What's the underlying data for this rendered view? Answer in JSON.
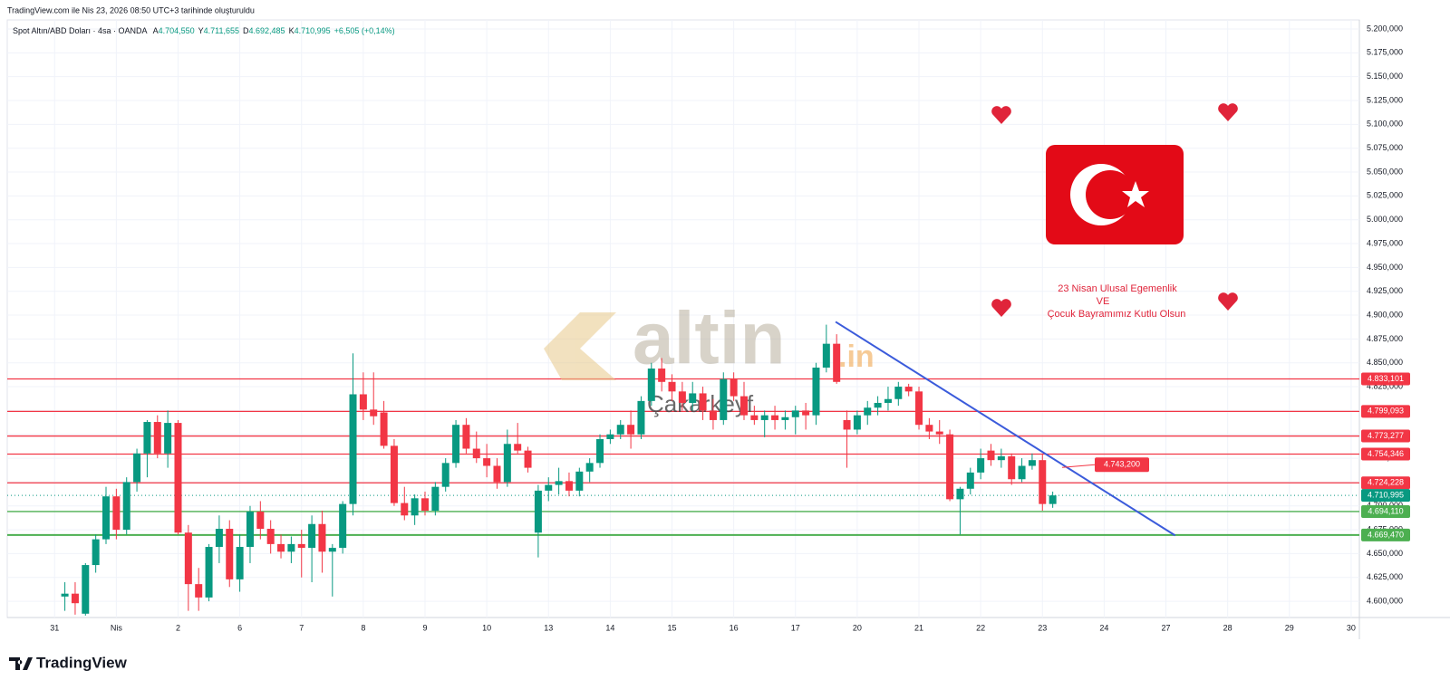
{
  "chart_data": {
    "type": "candlestick",
    "created": "TradingView.com ile Nis 23, 2026 08:50 UTC+3 tarihinde oluşturuldu",
    "symbol": "Spot Altın/ABD Doları · 4sa · OANDA",
    "ohlc": [
      {
        "key": "A",
        "value": "4.704,550"
      },
      {
        "key": "Y",
        "value": "4.711,655"
      },
      {
        "key": "D",
        "value": "4.692,485"
      },
      {
        "key": "K",
        "value": "4.710,995"
      }
    ],
    "change": "+6,505 (+0,14%)",
    "greeting": [
      "23 Nisan Ulusal Egemenlik",
      "VE",
      "Çocuk Bayramımız Kutlu Olsun"
    ],
    "watermark": {
      "brand": "altin",
      "suffix": ".in",
      "author": "Çakarkeyf"
    },
    "logo": "TradingView",
    "up_color": "#089981",
    "down_color": "#f23645",
    "x": [
      0,
      1,
      2,
      3,
      4,
      5,
      6,
      7,
      8,
      9,
      10,
      11,
      12,
      13,
      14,
      15,
      16,
      17,
      18,
      19,
      20,
      21,
      22,
      23,
      24,
      25,
      26,
      27,
      28,
      29,
      30,
      31,
      32,
      33,
      34,
      35,
      36,
      37,
      38,
      39,
      40,
      41,
      42,
      43,
      44,
      45,
      46,
      47,
      48,
      49,
      50,
      51,
      52,
      53,
      54,
      55,
      56,
      57,
      58,
      59,
      60,
      61,
      62,
      63,
      64,
      65,
      66,
      67,
      68,
      69,
      70,
      71,
      72,
      73,
      74,
      75,
      76,
      77,
      78,
      79,
      80,
      81,
      82,
      83,
      84,
      85,
      86,
      87,
      88,
      89,
      90,
      91,
      92,
      93,
      94,
      95,
      96
    ],
    "open": [
      4605,
      4608,
      4587,
      4638,
      4665,
      4710,
      4675,
      4725,
      4755,
      4788,
      4755,
      4787,
      4672,
      4618,
      4604,
      4657,
      4676,
      4623,
      4657,
      4694,
      4676,
      4660,
      4652,
      4660,
      4656,
      4681,
      4652,
      4656,
      4702,
      4817,
      4801,
      4798,
      4763,
      4703,
      4690,
      4708,
      4695,
      4720,
      4745,
      4785,
      4760,
      4750,
      4742,
      4725,
      4765,
      4758,
      4672,
      4716,
      4722,
      4726,
      4716,
      4736,
      4745,
      4770,
      4775,
      4785,
      4775,
      4810,
      4844,
      4830,
      4820,
      4808,
      4818,
      4800,
      4790,
      4833,
      4815,
      4795,
      4790,
      4795,
      4790,
      4793,
      4800,
      4795,
      4845,
      4870,
      4790,
      4780,
      4795,
      4803,
      4808,
      4812,
      4825,
      4820,
      4785,
      4778,
      4775,
      4707,
      4718,
      4735,
      4758,
      4748,
      4752,
      4728,
      4742,
      4748,
      4702
    ],
    "high": [
      4620,
      4620,
      4640,
      4670,
      4720,
      4718,
      4730,
      4760,
      4790,
      4795,
      4800,
      4790,
      4680,
      4635,
      4660,
      4690,
      4685,
      4670,
      4700,
      4705,
      4685,
      4670,
      4668,
      4675,
      4690,
      4695,
      4660,
      4705,
      4860,
      4840,
      4840,
      4810,
      4770,
      4720,
      4712,
      4715,
      4725,
      4750,
      4790,
      4792,
      4778,
      4765,
      4750,
      4780,
      4787,
      4762,
      4722,
      4730,
      4740,
      4735,
      4740,
      4750,
      4775,
      4780,
      4790,
      4800,
      4815,
      4850,
      4855,
      4838,
      4830,
      4830,
      4825,
      4812,
      4840,
      4840,
      4830,
      4805,
      4800,
      4805,
      4800,
      4805,
      4808,
      4850,
      4890,
      4880,
      4800,
      4800,
      4810,
      4815,
      4825,
      4830,
      4828,
      4825,
      4792,
      4790,
      4780,
      4720,
      4740,
      4760,
      4765,
      4760,
      4755,
      4750,
      4755,
      4754,
      4715
    ],
    "low": [
      4590,
      4586,
      4585,
      4630,
      4660,
      4665,
      4670,
      4715,
      4730,
      4750,
      4740,
      4670,
      4590,
      4590,
      4600,
      4640,
      4615,
      4610,
      4640,
      4665,
      4650,
      4645,
      4640,
      4625,
      4620,
      4630,
      4605,
      4650,
      4690,
      4790,
      4785,
      4760,
      4700,
      4685,
      4680,
      4690,
      4690,
      4715,
      4740,
      4755,
      4745,
      4730,
      4718,
      4720,
      4755,
      4735,
      4646,
      4705,
      4712,
      4710,
      4710,
      4725,
      4740,
      4765,
      4770,
      4760,
      4770,
      4805,
      4820,
      4810,
      4800,
      4800,
      4790,
      4780,
      4785,
      4810,
      4790,
      4785,
      4772,
      4780,
      4780,
      4775,
      4780,
      4785,
      4840,
      4828,
      4740,
      4775,
      4785,
      4795,
      4800,
      4805,
      4815,
      4780,
      4770,
      4765,
      4705,
      4670,
      4712,
      4728,
      4742,
      4740,
      4722,
      4725,
      4738,
      4695,
      4698
    ],
    "close": [
      4608,
      4598,
      4638,
      4665,
      4710,
      4675,
      4725,
      4755,
      4788,
      4755,
      4787,
      4672,
      4618,
      4604,
      4657,
      4676,
      4623,
      4657,
      4694,
      4676,
      4660,
      4652,
      4660,
      4656,
      4681,
      4652,
      4656,
      4702,
      4817,
      4801,
      4794,
      4763,
      4703,
      4690,
      4708,
      4695,
      4720,
      4745,
      4785,
      4760,
      4750,
      4742,
      4725,
      4765,
      4758,
      4740,
      4716,
      4722,
      4726,
      4716,
      4736,
      4745,
      4770,
      4775,
      4785,
      4775,
      4810,
      4844,
      4830,
      4820,
      4808,
      4818,
      4800,
      4790,
      4833,
      4815,
      4795,
      4790,
      4795,
      4790,
      4793,
      4800,
      4795,
      4845,
      4870,
      4830,
      4780,
      4795,
      4803,
      4808,
      4812,
      4825,
      4820,
      4785,
      4778,
      4775,
      4707,
      4718,
      4735,
      4750,
      4748,
      4752,
      4728,
      4742,
      4748,
      4702,
      4711
    ],
    "xlim": [
      -5.6,
      125.8
    ],
    "xticks": [
      {
        "value": -1,
        "label": "31"
      },
      {
        "value": 5,
        "label": "Nis"
      },
      {
        "value": 11,
        "label": "2"
      },
      {
        "value": 17,
        "label": "6"
      },
      {
        "value": 23,
        "label": "7"
      },
      {
        "value": 29,
        "label": "8"
      },
      {
        "value": 35,
        "label": "9"
      },
      {
        "value": 41,
        "label": "10"
      },
      {
        "value": 47,
        "label": "13"
      },
      {
        "value": 53,
        "label": "14"
      },
      {
        "value": 59,
        "label": "15"
      },
      {
        "value": 65,
        "label": "16"
      },
      {
        "value": 71,
        "label": "17"
      },
      {
        "value": 77,
        "label": "20"
      },
      {
        "value": 83,
        "label": "21"
      },
      {
        "value": 89,
        "label": "22"
      },
      {
        "value": 95,
        "label": "23"
      },
      {
        "value": 101,
        "label": "24"
      },
      {
        "value": 107,
        "label": "27"
      },
      {
        "value": 113,
        "label": "28"
      },
      {
        "value": 119,
        "label": "29"
      },
      {
        "value": 125,
        "label": "30"
      }
    ],
    "ylim": [
      4583,
      5209.5
    ],
    "yticks": [
      {
        "value": 4600,
        "label": "4.600,000"
      },
      {
        "value": 4625,
        "label": "4.625,000"
      },
      {
        "value": 4650,
        "label": "4.650,000"
      },
      {
        "value": 4675,
        "label": "4.675,000"
      },
      {
        "value": 4700,
        "label": "4.700,000"
      },
      {
        "value": 4725,
        "label": "4.725,000"
      },
      {
        "value": 4750,
        "label": "4.750,000"
      },
      {
        "value": 4775,
        "label": "4.775,000"
      },
      {
        "value": 4800,
        "label": "4.800,000"
      },
      {
        "value": 4825,
        "label": "4.825,000"
      },
      {
        "value": 4850,
        "label": "4.850,000"
      },
      {
        "value": 4875,
        "label": "4.875,000"
      },
      {
        "value": 4900,
        "label": "4.900,000"
      },
      {
        "value": 4925,
        "label": "4.925,000"
      },
      {
        "value": 4950,
        "label": "4.950,000"
      },
      {
        "value": 4975,
        "label": "4.975,000"
      },
      {
        "value": 5000,
        "label": "5.000,000"
      },
      {
        "value": 5025,
        "label": "5.025,000"
      },
      {
        "value": 5050,
        "label": "5.050,000"
      },
      {
        "value": 5075,
        "label": "5.075,000"
      },
      {
        "value": 5100,
        "label": "5.100,000"
      },
      {
        "value": 5125,
        "label": "5.125,000"
      },
      {
        "value": 5150,
        "label": "5.150,000"
      },
      {
        "value": 5175,
        "label": "5.175,000"
      },
      {
        "value": 5200,
        "label": "5.200,000"
      }
    ],
    "grid": true,
    "levels": [
      {
        "value": 4833.101,
        "label": "4.833,101",
        "color": "#f23645"
      },
      {
        "value": 4799.093,
        "label": "4.799,093",
        "color": "#f23645"
      },
      {
        "value": 4773.277,
        "label": "4.773,277",
        "color": "#f23645"
      },
      {
        "value": 4754.346,
        "label": "4.754,346",
        "color": "#f23645"
      },
      {
        "value": 4724.228,
        "label": "4.724,228",
        "color": "#f23645"
      },
      {
        "value": 4694.11,
        "label": "4.694,110",
        "color": "#4caf50"
      },
      {
        "value": 4669.47,
        "label": "4.669,470",
        "color": "#4caf50"
      }
    ],
    "last_price": {
      "value": 4710.995,
      "label": "4.710,995",
      "color": "#089981"
    },
    "callout": {
      "value": 4743.2,
      "label": "4.743,200",
      "color": "#f23645"
    },
    "trendline": {
      "x": [
        74.9,
        107.9
      ],
      "y": [
        4893,
        4669
      ],
      "color": "#3b5bdb"
    }
  }
}
